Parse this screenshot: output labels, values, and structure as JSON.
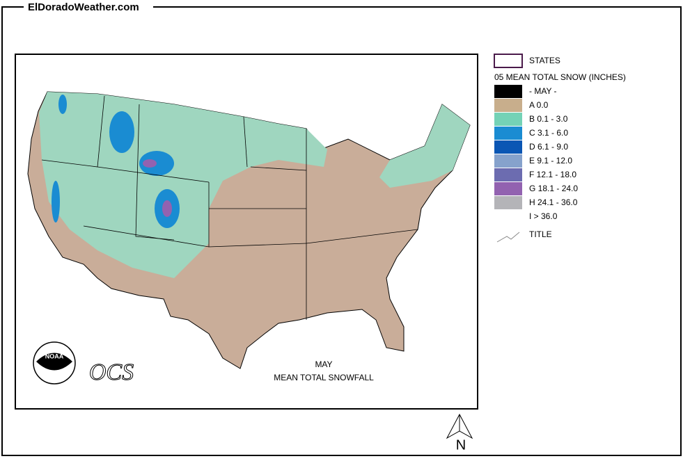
{
  "header": {
    "site": "ElDoradoWeather.com"
  },
  "legend": {
    "states_label": "STATES",
    "title": "05 MEAN TOTAL SNOW (INCHES)",
    "items": [
      {
        "label": "- MAY -",
        "color": "#000000"
      },
      {
        "label": "A 0.0",
        "color": "#c8ae8c"
      },
      {
        "label": "B 0.1 - 3.0",
        "color": "#74d2b6"
      },
      {
        "label": "C 3.1 - 6.0",
        "color": "#1a8cd2"
      },
      {
        "label": "D 6.1 - 9.0",
        "color": "#0a56b4"
      },
      {
        "label": "E 9.1 - 12.0",
        "color": "#86a2cc"
      },
      {
        "label": "F 12.1 - 18.0",
        "color": "#6c6cb0"
      },
      {
        "label": "G 18.1 - 24.0",
        "color": "#9262b0"
      },
      {
        "label": "H 24.1 - 36.0",
        "color": "#b4b4b8"
      },
      {
        "label": "I > 36.0"
      }
    ],
    "title_label": "TITLE"
  },
  "map": {
    "month": "MAY",
    "caption": "MEAN TOTAL SNOWFALL",
    "logo_noaa": "NOAA",
    "logo_ocs": "OCS",
    "north": "N"
  }
}
